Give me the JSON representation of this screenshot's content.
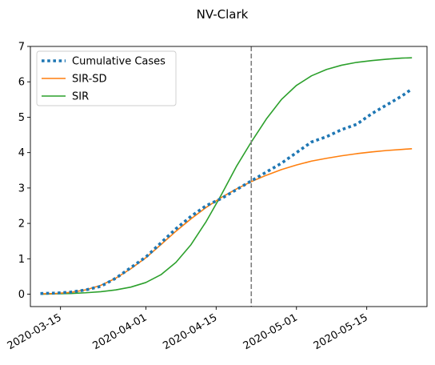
{
  "chart_data": {
    "type": "line",
    "title": "NV-Clark",
    "xlabel": "",
    "ylabel": "",
    "x_ticks": [
      "2020-03-15",
      "2020-04-01",
      "2020-04-15",
      "2020-05-01",
      "2020-05-15"
    ],
    "ylim": [
      -0.35,
      7.0
    ],
    "y_ticks": [
      0,
      1,
      2,
      3,
      4,
      5,
      6,
      7
    ],
    "xlim": [
      "2020-03-09",
      "2020-05-27"
    ],
    "vline_date": "2020-04-22",
    "legend_position": "top-left",
    "grid": false,
    "series": [
      {
        "name": "Cumulative Cases",
        "color": "#1f77b4",
        "style": "dotted",
        "x": [
          "2020-03-11",
          "2020-03-14",
          "2020-03-17",
          "2020-03-20",
          "2020-03-23",
          "2020-03-26",
          "2020-03-29",
          "2020-04-01",
          "2020-04-04",
          "2020-04-07",
          "2020-04-10",
          "2020-04-13",
          "2020-04-16",
          "2020-04-19",
          "2020-04-22",
          "2020-04-25",
          "2020-04-28",
          "2020-05-01",
          "2020-05-04",
          "2020-05-07",
          "2020-05-10",
          "2020-05-13",
          "2020-05-16",
          "2020-05-19",
          "2020-05-22",
          "2020-05-24"
        ],
        "y": [
          0.02,
          0.03,
          0.06,
          0.12,
          0.22,
          0.45,
          0.75,
          1.05,
          1.45,
          1.85,
          2.2,
          2.5,
          2.7,
          2.95,
          3.2,
          3.45,
          3.7,
          4.0,
          4.3,
          4.45,
          4.65,
          4.8,
          5.1,
          5.35,
          5.6,
          5.8
        ]
      },
      {
        "name": "SIR-SD",
        "color": "#ff7f0e",
        "style": "solid",
        "x": [
          "2020-03-11",
          "2020-03-14",
          "2020-03-17",
          "2020-03-20",
          "2020-03-23",
          "2020-03-26",
          "2020-03-29",
          "2020-04-01",
          "2020-04-04",
          "2020-04-07",
          "2020-04-10",
          "2020-04-13",
          "2020-04-16",
          "2020-04-19",
          "2020-04-22",
          "2020-04-25",
          "2020-04-28",
          "2020-05-01",
          "2020-05-04",
          "2020-05-07",
          "2020-05-10",
          "2020-05-13",
          "2020-05-16",
          "2020-05-19",
          "2020-05-22",
          "2020-05-24"
        ],
        "y": [
          0.01,
          0.02,
          0.05,
          0.12,
          0.25,
          0.45,
          0.72,
          1.03,
          1.4,
          1.78,
          2.13,
          2.45,
          2.73,
          2.97,
          3.18,
          3.36,
          3.52,
          3.65,
          3.76,
          3.84,
          3.91,
          3.97,
          4.02,
          4.06,
          4.09,
          4.11
        ]
      },
      {
        "name": "SIR",
        "color": "#2ca02c",
        "style": "solid",
        "x": [
          "2020-03-11",
          "2020-03-14",
          "2020-03-17",
          "2020-03-20",
          "2020-03-23",
          "2020-03-26",
          "2020-03-29",
          "2020-04-01",
          "2020-04-04",
          "2020-04-07",
          "2020-04-10",
          "2020-04-13",
          "2020-04-16",
          "2020-04-19",
          "2020-04-22",
          "2020-04-25",
          "2020-04-28",
          "2020-05-01",
          "2020-05-04",
          "2020-05-07",
          "2020-05-10",
          "2020-05-13",
          "2020-05-16",
          "2020-05-19",
          "2020-05-22",
          "2020-05-24"
        ],
        "y": [
          0.0,
          0.01,
          0.02,
          0.04,
          0.07,
          0.12,
          0.2,
          0.33,
          0.55,
          0.9,
          1.4,
          2.05,
          2.8,
          3.6,
          4.3,
          4.95,
          5.5,
          5.9,
          6.17,
          6.35,
          6.47,
          6.55,
          6.6,
          6.64,
          6.67,
          6.68
        ]
      }
    ]
  }
}
